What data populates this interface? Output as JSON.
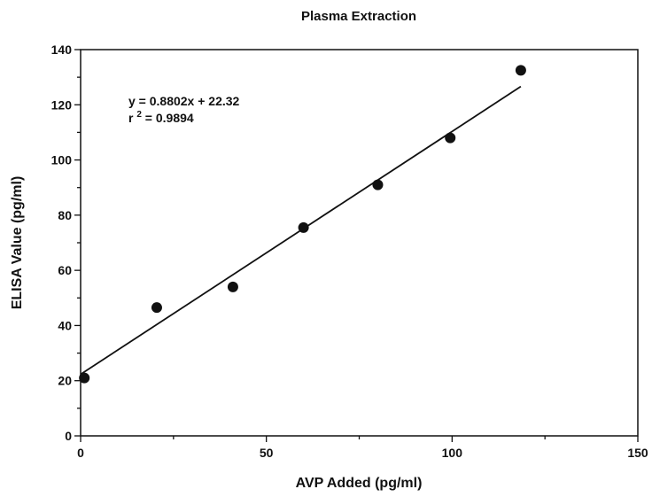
{
  "chart_data": {
    "type": "scatter",
    "title": "Plasma Extraction",
    "xlabel": "AVP Added (pg/ml)",
    "ylabel": "ELISA Value (pg/ml)",
    "xlim": [
      0,
      150
    ],
    "ylim": [
      0,
      140
    ],
    "x_major_ticks": [
      0,
      50,
      100,
      150
    ],
    "x_minor_ticks": [
      25,
      75,
      125
    ],
    "y_major_ticks": [
      0,
      20,
      40,
      60,
      80,
      100,
      120,
      140
    ],
    "y_minor_ticks": [
      10,
      30,
      50,
      70,
      90,
      110,
      130
    ],
    "grid": false,
    "series": [
      {
        "x": [
          1,
          20.5,
          41,
          60,
          80,
          99.5,
          118.5
        ],
        "y": [
          21,
          46.5,
          54,
          75.5,
          91,
          108,
          132.5
        ]
      }
    ],
    "fit": {
      "slope": 0.8802,
      "intercept": 22.32,
      "x_range": [
        0,
        118.5
      ]
    },
    "annotations": {
      "equation": "y = 0.8802x + 22.32",
      "r2_prefix": "r",
      "r2_superscript": "2",
      "r2_value": " = 0.9894"
    }
  }
}
